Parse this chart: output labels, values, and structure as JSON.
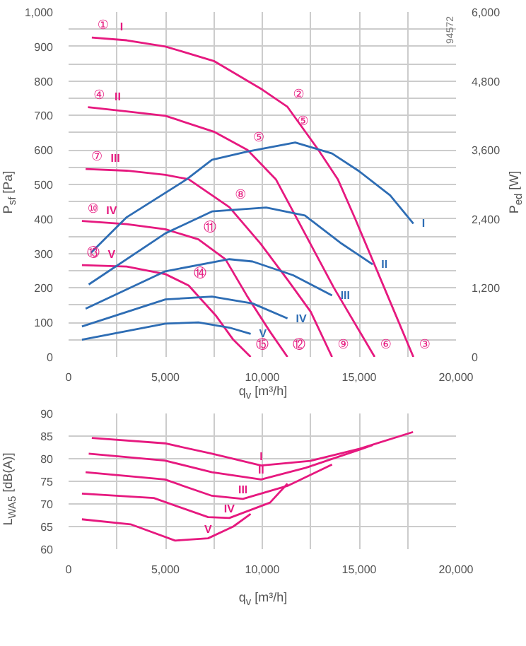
{
  "chart_data": [
    {
      "type": "line",
      "xlabel": "q$_{v}$ [m³/h]",
      "ylabel": "P$_{sf}$ [Pa]",
      "y2label": "P$_{ed}$ [W]",
      "xlim": [
        0,
        20000
      ],
      "xticks": [
        0,
        {
          "value": 2500,
          "label": null
        },
        {
          "value": 5000,
          "label": "5,000"
        },
        {
          "value": 7500,
          "label": null
        },
        {
          "value": 10000,
          "label": "10,000"
        },
        {
          "value": 12500,
          "label": null
        },
        {
          "value": 15000,
          "label": "15,000"
        },
        {
          "value": 17500,
          "label": null
        },
        {
          "value": 20000,
          "label": "20,000"
        }
      ],
      "ylim": [
        0,
        1000
      ],
      "yticks": [
        0,
        {
          "value": 50,
          "label": null
        },
        100,
        {
          "value": 150,
          "label": null
        },
        200,
        {
          "value": 250,
          "label": null
        },
        300,
        {
          "value": 350,
          "label": null
        },
        400,
        {
          "value": 450,
          "label": null
        },
        500,
        {
          "value": 550,
          "label": null
        },
        600,
        {
          "value": 650,
          "label": null
        },
        700,
        {
          "value": 750,
          "label": null
        },
        800,
        {
          "value": 850,
          "label": null
        },
        900,
        {
          "value": 950,
          "label": null
        },
        {
          "value": 1000,
          "label": "1,000"
        }
      ],
      "y2lim": [
        0,
        6000
      ],
      "y2ticks": [
        0,
        {
          "value": 1200,
          "label": "1,200"
        },
        {
          "value": 2400,
          "label": "2,400"
        },
        {
          "value": 3600,
          "label": "3,600"
        },
        {
          "value": 4800,
          "label": "4,800"
        },
        {
          "value": 6000,
          "label": "6,000"
        }
      ],
      "grid": true,
      "series": [
        {
          "name": "I",
          "color": "#e6197f",
          "x": [
            1200,
            3000,
            5000,
            7500,
            10000,
            11300,
            12900,
            13900,
            14800,
            16300,
            17800
          ],
          "values": [
            926,
            918,
            900,
            858,
            775,
            725,
            600,
            515,
            400,
            200,
            0
          ]
        },
        {
          "name": "II",
          "color": "#e6197f",
          "x": [
            1000,
            3000,
            5000,
            7500,
            9240,
            10700,
            11800,
            13700,
            15800
          ],
          "values": [
            724,
            712,
            699,
            653,
            600,
            515,
            400,
            200,
            0
          ]
        },
        {
          "name": "III",
          "color": "#e6197f",
          "x": [
            880,
            3000,
            5000,
            6200,
            8300,
            9900,
            11300,
            12500,
            13600
          ],
          "values": [
            545,
            540,
            528,
            515,
            434,
            329,
            224,
            131,
            0
          ]
        },
        {
          "name": "IV",
          "color": "#e6197f",
          "x": [
            690,
            3000,
            5000,
            6700,
            8100,
            9200,
            10400,
            11300
          ],
          "values": [
            394,
            385,
            370,
            341,
            283,
            178,
            73,
            0
          ]
        },
        {
          "name": "V",
          "color": "#e6197f",
          "x": [
            690,
            3000,
            5000,
            6200,
            7600,
            8500,
            9400
          ],
          "values": [
            266,
            262,
            240,
            207,
            120,
            50,
            0
          ]
        },
        {
          "name": "I",
          "color": "#2e6db4",
          "axis": "y2",
          "x": [
            1150,
            3000,
            6100,
            7400,
            9200,
            11700,
            13600,
            15000,
            16600,
            17800
          ],
          "values": [
            1810,
            2430,
            3090,
            3430,
            3570,
            3730,
            3540,
            3230,
            2810,
            2320
          ]
        },
        {
          "name": "II",
          "color": "#2e6db4",
          "axis": "y2",
          "x": [
            1040,
            5000,
            7400,
            10200,
            12200,
            14100,
            15700
          ],
          "values": [
            1260,
            2150,
            2530,
            2600,
            2460,
            1970,
            1610
          ]
        },
        {
          "name": "III",
          "color": "#2e6db4",
          "axis": "y2",
          "x": [
            880,
            5000,
            8300,
            9500,
            11600,
            13600
          ],
          "values": [
            840,
            1490,
            1700,
            1660,
            1420,
            1070
          ]
        },
        {
          "name": "IV",
          "color": "#2e6db4",
          "axis": "y2",
          "x": [
            690,
            5000,
            7400,
            9500,
            11300
          ],
          "values": [
            530,
            1000,
            1050,
            930,
            670
          ]
        },
        {
          "name": "V",
          "color": "#2e6db4",
          "axis": "y2",
          "x": [
            690,
            5000,
            6700,
            8300,
            9400
          ],
          "values": [
            300,
            580,
            600,
            510,
            400
          ]
        }
      ],
      "annotations": [
        "94572",
        {
          "text": "①",
          "x": 1200,
          "y": 926
        },
        {
          "text": "②",
          "x": 11300,
          "y": 725
        },
        {
          "text": "⑤",
          "x": 11300,
          "y": 725
        },
        {
          "text": "④",
          "x": 1000,
          "y": 724
        },
        {
          "text": "⑤",
          "x": 9240,
          "y": 600
        },
        {
          "text": "⑦",
          "x": 880,
          "y": 545
        },
        {
          "text": "⑩",
          "x": 690,
          "y": 394
        },
        {
          "text": "⑬",
          "x": 690,
          "y": 266
        },
        {
          "text": "⑧",
          "x": 8300,
          "y": 434
        },
        {
          "text": "⑪",
          "x": 6700,
          "y": 341
        },
        {
          "text": "⑭",
          "x": 6200,
          "y": 207
        },
        {
          "text": "⑮",
          "x": 9400,
          "y": 0
        },
        {
          "text": "⑫",
          "x": 11300,
          "y": 0
        },
        {
          "text": "⑨",
          "x": 13600,
          "y": 0
        },
        {
          "text": "⑥",
          "x": 15800,
          "y": 0
        },
        {
          "text": "③",
          "x": 17800,
          "y": 0
        }
      ]
    },
    {
      "type": "line",
      "xlabel": "q$_{v}$ [m³/h]",
      "ylabel": "L$_{WA5}$ [dB(A)]",
      "xlim": [
        0,
        20000
      ],
      "xticks": [
        0,
        {
          "value": 2500,
          "label": null
        },
        {
          "value": 5000,
          "label": "5,000"
        },
        {
          "value": 7500,
          "label": null
        },
        {
          "value": 10000,
          "label": "10,000"
        },
        {
          "value": 12500,
          "label": null
        },
        {
          "value": 15000,
          "label": "15,000"
        },
        {
          "value": 17500,
          "label": null
        },
        {
          "value": 20000,
          "label": "20,000"
        }
      ],
      "ylim": [
        60,
        90
      ],
      "yticks": [
        60,
        65,
        70,
        75,
        80,
        85,
        90
      ],
      "grid": true,
      "series": [
        {
          "name": "I",
          "color": "#e6197f",
          "x": [
            1200,
            4970,
            7400,
            9940,
            12470,
            15030,
            17780
          ],
          "values": [
            84.6,
            83.4,
            81.1,
            78.5,
            79.5,
            82.2,
            85.9
          ]
        },
        {
          "name": "II",
          "color": "#e6197f",
          "x": [
            1040,
            4970,
            7400,
            9940,
            12240,
            15030,
            15700
          ],
          "values": [
            81.1,
            79.6,
            77.0,
            75.4,
            78.0,
            82.0,
            83.0
          ]
        },
        {
          "name": "III",
          "color": "#e6197f",
          "x": [
            880,
            4970,
            7400,
            9000,
            11300,
            13600
          ],
          "values": [
            77.0,
            75.4,
            71.8,
            71.1,
            74.0,
            78.7
          ]
        },
        {
          "name": "IV",
          "color": "#e6197f",
          "x": [
            690,
            4400,
            7200,
            8300,
            10400,
            11300
          ],
          "values": [
            72.3,
            71.3,
            67.1,
            66.9,
            70.3,
            74.5
          ]
        },
        {
          "name": "V",
          "color": "#e6197f",
          "x": [
            690,
            3200,
            5500,
            7200,
            8500,
            9400
          ],
          "values": [
            66.6,
            65.5,
            61.9,
            62.4,
            65.0,
            67.8
          ]
        }
      ]
    }
  ]
}
